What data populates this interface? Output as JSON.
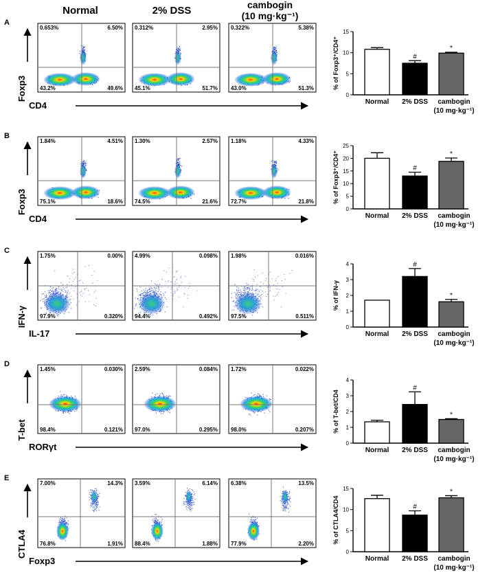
{
  "headers": {
    "normal": "Normal",
    "dss": "2% DSS",
    "camb1": "cambogin",
    "camb2": "(10 mg·kg⁻¹)"
  },
  "panels": [
    {
      "letter": "A",
      "ylabel": "Foxp3",
      "xlabel": "CD4",
      "cluster": "twopop",
      "quadrants": [
        {
          "ul": "0.653%",
          "ur": "6.50%",
          "ll": "43.2%",
          "lr": "49.6%"
        },
        {
          "ul": "0.312%",
          "ur": "2.95%",
          "ll": "45.1%",
          "lr": "51.7%"
        },
        {
          "ul": "0.322%",
          "ur": "5.38%",
          "ll": "43.0%",
          "lr": "51.3%"
        }
      ]
    },
    {
      "letter": "B",
      "ylabel": "Foxp3",
      "xlabel": "CD4",
      "cluster": "twopop",
      "quadrants": [
        {
          "ul": "1.84%",
          "ur": "4.51%",
          "ll": "75.1%",
          "lr": "18.6%"
        },
        {
          "ul": "1.30%",
          "ur": "2.57%",
          "ll": "74.5%",
          "lr": "21.6%"
        },
        {
          "ul": "1.18%",
          "ur": "4.33%",
          "ll": "72.7%",
          "lr": "21.8%"
        }
      ]
    },
    {
      "letter": "C",
      "ylabel": "IFN-γ",
      "xlabel": "IL-17",
      "cluster": "blob",
      "quadrants": [
        {
          "ul": "1.75%",
          "ur": "0.00%",
          "ll": "97.9%",
          "lr": "0.320%"
        },
        {
          "ul": "4.99%",
          "ur": "0.098%",
          "ll": "94.4%",
          "lr": "0.492%"
        },
        {
          "ul": "1.98%",
          "ur": "0.016%",
          "ll": "97.5%",
          "lr": "0.511%"
        }
      ]
    },
    {
      "letter": "D",
      "ylabel": "T-bet",
      "xlabel": "RORγt",
      "cluster": "center",
      "quadrants": [
        {
          "ul": "1.45%",
          "ur": "0.030%",
          "ll": "98.4%",
          "lr": "0.121%"
        },
        {
          "ul": "2.59%",
          "ur": "0.084%",
          "ll": "97.0%",
          "lr": "0.295%"
        },
        {
          "ul": "1.72%",
          "ur": "0.022%",
          "ll": "98.0%",
          "lr": "0.207%"
        }
      ]
    },
    {
      "letter": "E",
      "ylabel": "CTLA4",
      "xlabel": "Foxp3",
      "cluster": "diag",
      "quadrants": [
        {
          "ul": "7.00%",
          "ur": "14.3%",
          "ll": "76.8%",
          "lr": "1.91%"
        },
        {
          "ul": "3.59%",
          "ur": "6.14%",
          "ll": "88.4%",
          "lr": "1.88%"
        },
        {
          "ul": "6.38%",
          "ur": "13.5%",
          "ll": "77.9%",
          "lr": "2.20%"
        }
      ]
    }
  ],
  "colors": {
    "normal": "#ffffff",
    "dss": "#000000",
    "cambogin": "#666666"
  },
  "chart_data": [
    {
      "type": "bar",
      "panel": "A",
      "ylabel": "% of Foxp3⁺/CD4⁺",
      "ylim": [
        0,
        15
      ],
      "yticks": [
        0,
        5,
        10,
        15
      ],
      "categories": [
        "Normal",
        "2% DSS",
        "cambogin (10 mg·kg⁻¹)"
      ],
      "values": [
        10.8,
        7.5,
        9.9
      ],
      "errors": [
        0.4,
        0.6,
        0.2
      ],
      "annotations": [
        "",
        "#",
        "*"
      ]
    },
    {
      "type": "bar",
      "panel": "B",
      "ylabel": "% of Foxp3⁺/CD4⁺",
      "ylim": [
        0,
        25
      ],
      "yticks": [
        0,
        5,
        10,
        15,
        20,
        25
      ],
      "categories": [
        "Normal",
        "2% DSS",
        "cambogin (10 mg·kg⁻¹)"
      ],
      "values": [
        20.0,
        13.0,
        18.8
      ],
      "errors": [
        2.2,
        1.5,
        1.3
      ],
      "annotations": [
        "",
        "#",
        "*"
      ]
    },
    {
      "type": "bar",
      "panel": "C",
      "ylabel": "% of IFN-γ",
      "ylim": [
        0,
        4
      ],
      "yticks": [
        0,
        1,
        2,
        3,
        4
      ],
      "categories": [
        "Normal",
        "2% DSS",
        "cambogin (10 mg·kg⁻¹)"
      ],
      "values": [
        1.7,
        3.2,
        1.6
      ],
      "errors": [
        0.0,
        0.5,
        0.15
      ],
      "annotations": [
        "",
        "#",
        "*"
      ]
    },
    {
      "type": "bar",
      "panel": "D",
      "ylabel": "% of T-bet/CD4",
      "ylim": [
        0,
        4
      ],
      "yticks": [
        0,
        1,
        2,
        3,
        4
      ],
      "categories": [
        "Normal",
        "2% DSS",
        "cambogin (10 mg·kg⁻¹)"
      ],
      "values": [
        1.35,
        2.45,
        1.5
      ],
      "errors": [
        0.1,
        0.8,
        0.05
      ],
      "annotations": [
        "",
        "#",
        "*"
      ]
    },
    {
      "type": "bar",
      "panel": "E",
      "ylabel": "% of CTLA4/CD4",
      "ylim": [
        0,
        15
      ],
      "yticks": [
        0,
        5,
        10,
        15
      ],
      "categories": [
        "Normal",
        "2% DSS",
        "cambogin (10 mg·kg⁻¹)"
      ],
      "values": [
        12.6,
        8.7,
        12.8
      ],
      "errors": [
        0.8,
        1.0,
        0.5
      ],
      "annotations": [
        "",
        "#",
        "*"
      ]
    }
  ]
}
